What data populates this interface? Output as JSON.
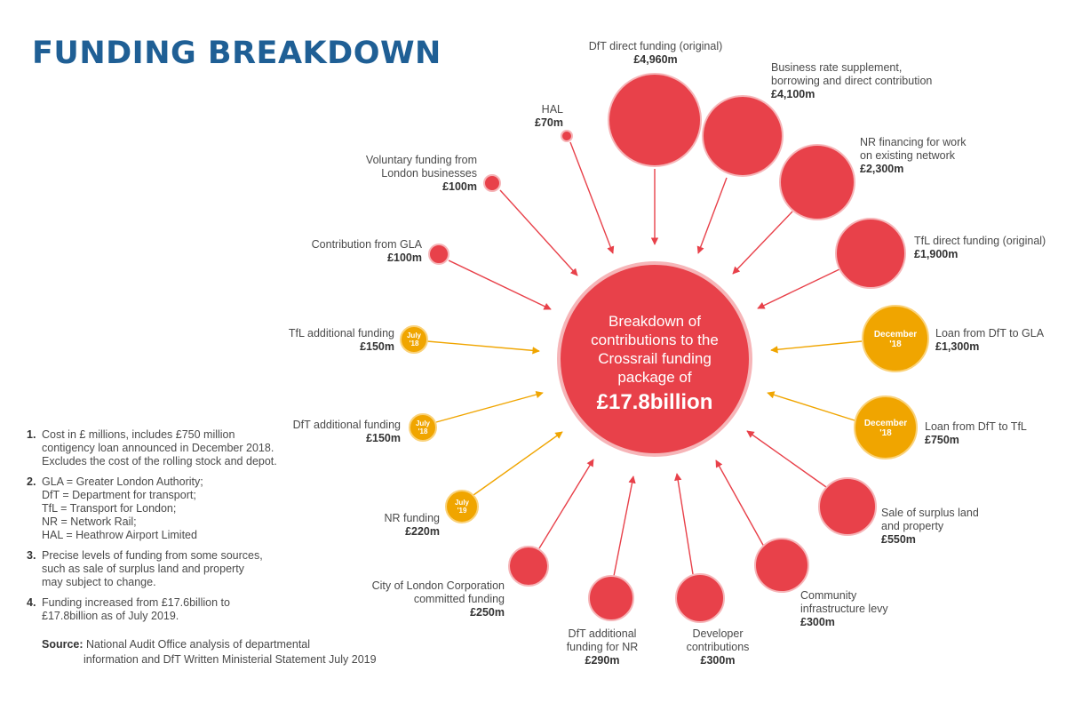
{
  "title": "FUNDING BREAKDOWN",
  "colors": {
    "accent": "#1f5f95",
    "red": "#e8414a",
    "orange": "#f0a500"
  },
  "center": {
    "lines": [
      "Breakdown of",
      "contributions to the",
      "Crossrail funding",
      "package of"
    ],
    "total": "£17.8billion"
  },
  "sources": [
    {
      "id": "dft-direct",
      "label": [
        "DfT direct funding (original)"
      ],
      "amount": "£4,960m",
      "value": 4960,
      "color": "red"
    },
    {
      "id": "business-rate",
      "label": [
        "Business rate supplement,",
        "borrowing and direct contribution"
      ],
      "amount": "£4,100m",
      "value": 4100,
      "color": "red"
    },
    {
      "id": "nr-financing",
      "label": [
        "NR financing for work",
        "on existing network"
      ],
      "amount": "£2,300m",
      "value": 2300,
      "color": "red"
    },
    {
      "id": "tfl-direct",
      "label": [
        "TfL direct funding (original)"
      ],
      "amount": "£1,900m",
      "value": 1900,
      "color": "red"
    },
    {
      "id": "loan-dft-gla",
      "label": [
        "Loan from DfT to GLA"
      ],
      "amount": "£1,300m",
      "value": 1300,
      "color": "orange",
      "badge": [
        "December",
        "'18"
      ]
    },
    {
      "id": "loan-dft-tfl",
      "label": [
        "Loan from DfT to TfL"
      ],
      "amount": "£750m",
      "value": 750,
      "color": "orange",
      "badge": [
        "December",
        "'18"
      ]
    },
    {
      "id": "surplus-land",
      "label": [
        "Sale of surplus land",
        "and property"
      ],
      "amount": "£550m",
      "value": 550,
      "color": "red"
    },
    {
      "id": "community-levy",
      "label": [
        "Community",
        "infrastructure levy"
      ],
      "amount": "£300m",
      "value": 300,
      "color": "red"
    },
    {
      "id": "developer",
      "label": [
        "Developer",
        "contributions"
      ],
      "amount": "£300m",
      "value": 300,
      "color": "red"
    },
    {
      "id": "dft-nr",
      "label": [
        "DfT additional",
        "funding for NR"
      ],
      "amount": "£290m",
      "value": 290,
      "color": "red"
    },
    {
      "id": "city-london",
      "label": [
        "City of London Corporation",
        "committed funding"
      ],
      "amount": "£250m",
      "value": 250,
      "color": "red"
    },
    {
      "id": "nr-funding",
      "label": [
        "NR funding"
      ],
      "amount": "£220m",
      "value": 220,
      "color": "orange",
      "badge": [
        "July",
        "'19"
      ]
    },
    {
      "id": "dft-additional",
      "label": [
        "DfT additional funding"
      ],
      "amount": "£150m",
      "value": 150,
      "color": "orange",
      "badge": [
        "July",
        "'18"
      ]
    },
    {
      "id": "tfl-additional",
      "label": [
        "TfL additional funding"
      ],
      "amount": "£150m",
      "value": 150,
      "color": "orange",
      "badge": [
        "July",
        "'18"
      ]
    },
    {
      "id": "gla",
      "label": [
        "Contribution from GLA"
      ],
      "amount": "£100m",
      "value": 100,
      "color": "red"
    },
    {
      "id": "voluntary",
      "label": [
        "Voluntary funding from",
        "London businesses"
      ],
      "amount": "£100m",
      "value": 100,
      "color": "red"
    },
    {
      "id": "hal",
      "label": [
        "HAL"
      ],
      "amount": "£70m",
      "value": 70,
      "color": "red"
    }
  ],
  "notes": [
    {
      "num": "1.",
      "text": "Cost in £ millions, includes £750 million\ncontigency loan announced in December 2018.\nExcludes the cost of the rolling stock and depot."
    },
    {
      "num": "2.",
      "text": "GLA = Greater London Authority;\nDfT = Department for transport;\nTfL = Transport for London;\nNR = Network Rail;\nHAL = Heathrow Airport Limited"
    },
    {
      "num": "3.",
      "text": "Precise levels of funding from some sources,\nsuch as sale of surplus land and property\nmay subject to change."
    },
    {
      "num": "4.",
      "text": "Funding increased from £17.6billion to\n£17.8billion as of July 2019."
    }
  ],
  "source": {
    "label": "Source:",
    "line1": "National Audit Office analysis of departmental",
    "line2": "information and DfT Written Ministerial Statement July 2019"
  }
}
